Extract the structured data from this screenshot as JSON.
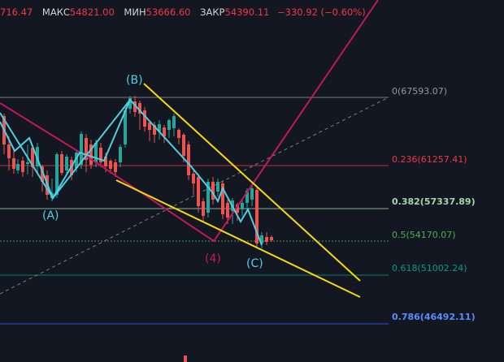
{
  "ohlc": {
    "open_label": "",
    "open_value": "716.47",
    "high_label": "МАКС",
    "high_value": "54821.00",
    "low_label": "МИН",
    "low_value": "53666.60",
    "close_label": "ЗАКР",
    "close_value": "54390.11",
    "change": "−330.92 (−0.60%)"
  },
  "fib_levels": [
    {
      "ratio": "0",
      "price": "(67593.07)",
      "color": "#9598a1"
    },
    {
      "ratio": "0.236",
      "price": "(61257.41)",
      "color": "#f23645"
    },
    {
      "ratio": "0.382",
      "price": "(57337.89)",
      "color": "#a5d6a7"
    },
    {
      "ratio": "0.5",
      "price": "(54170.07)",
      "color": "#4caf50"
    },
    {
      "ratio": "0.618",
      "price": "(51002.24)",
      "color": "#089981"
    },
    {
      "ratio": "0.786",
      "price": "(46492.11)",
      "color": "#2962ff"
    }
  ],
  "wave_labels": {
    "A": "(A)",
    "B": "(B)",
    "C": "(C)",
    "four": "(4)"
  },
  "colors": {
    "up": "#26a69a",
    "down": "#ef5350",
    "wave_line": "#4dd0e1",
    "impulse_line": "#c2185b",
    "trend_line": "#f5d90a",
    "background": "#131722"
  }
}
